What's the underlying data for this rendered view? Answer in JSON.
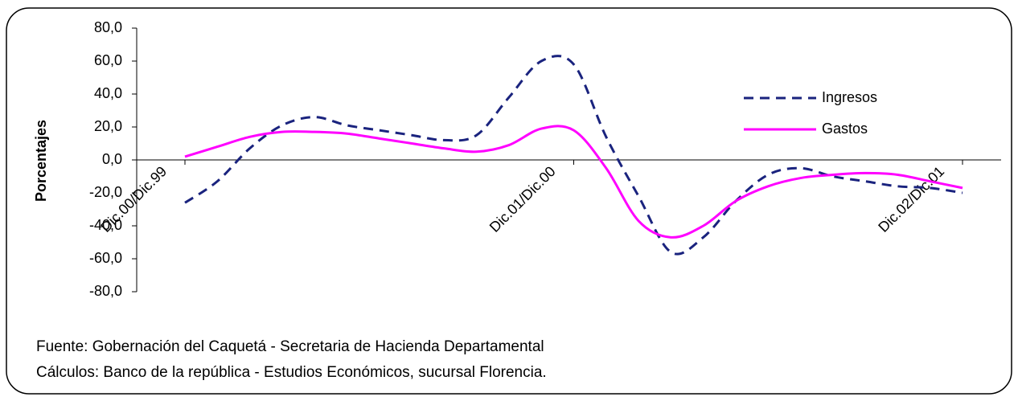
{
  "chart_data": {
    "type": "line",
    "y_label": "Porcentajes",
    "categories": [
      "Dic.00/Dic.99",
      null,
      null,
      null,
      null,
      null,
      null,
      null,
      null,
      null,
      null,
      null,
      "Dic.01/Dic.00",
      null,
      null,
      null,
      null,
      null,
      null,
      null,
      null,
      null,
      null,
      null,
      "Dic.02/Dic.01"
    ],
    "series": [
      {
        "name": "Ingresos",
        "color": "#1a237e",
        "dash": true,
        "values": [
          -26,
          -13,
          7,
          21,
          26,
          21,
          18,
          15,
          12,
          15,
          38,
          60,
          58,
          14,
          -22,
          -56,
          -47,
          -25,
          -9,
          -5,
          -10,
          -13,
          -16,
          -17,
          -20
        ]
      },
      {
        "name": "Gastos",
        "color": "#ff00ff",
        "dash": false,
        "values": [
          2,
          8,
          14,
          17,
          17,
          16,
          13,
          10,
          7,
          5,
          9,
          19,
          18,
          -5,
          -37,
          -47,
          -40,
          -25,
          -16,
          -11,
          -9,
          -8,
          -9,
          -13,
          -17
        ]
      }
    ],
    "ylim": [
      -80,
      80
    ],
    "yticks": [
      {
        "value": -80,
        "label": "-80,0"
      },
      {
        "value": -60,
        "label": "-60,0"
      },
      {
        "value": -40,
        "label": "-40,0"
      },
      {
        "value": -20,
        "label": "-20,0"
      },
      {
        "value": 0,
        "label": "0,0"
      },
      {
        "value": 20,
        "label": "20,0"
      },
      {
        "value": 40,
        "label": "40,0"
      },
      {
        "value": 60,
        "label": "60,0"
      },
      {
        "value": 80,
        "label": "80,0"
      }
    ],
    "legend": "upper right",
    "annotations": [
      "Fuente: Gobernación del Caquetá - Secretaria de Hacienda Departamental",
      "Cálculos:  Banco de la república - Estudios Económicos, sucursal Florencia."
    ]
  }
}
